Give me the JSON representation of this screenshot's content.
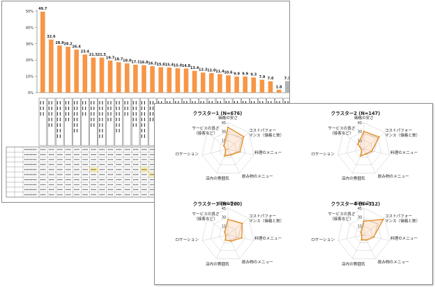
{
  "chart_data": [
    {
      "type": "bar",
      "ylim": [
        0,
        50
      ],
      "yticks": [
        "0%",
        "10%",
        "20%",
        "30%",
        "40%",
        "50%"
      ],
      "grid": false,
      "colors": {
        "bar": "#f79646",
        "last_bar": "#b3b3b3"
      },
      "values": [
        49.7,
        32.6,
        28.9,
        28.2,
        26.4,
        23.4,
        21.5,
        21.5,
        19.7,
        18.7,
        18.0,
        17.1,
        16.8,
        16.2,
        15.6,
        15.4,
        15.0,
        14.8,
        13.4,
        12.3,
        12.0,
        11.4,
        10.6,
        9.9,
        9.9,
        9.3,
        7.9,
        7.0,
        1.8,
        7.1
      ],
      "value_labels": [
        "49.7",
        "32.6",
        "28.9",
        "28.2",
        "26.4",
        "23.4",
        "21.5",
        "21.5",
        "19.7",
        "18.7",
        "18.0",
        "17.1",
        "16.8",
        "16.2",
        "15.6",
        "15.4",
        "15.0",
        "14.8",
        "13.4",
        "12.3",
        "12.0",
        "11.4",
        "10.6",
        "9.9",
        "9.9",
        "9.3",
        "7.9",
        "7.0",
        "1.8",
        "7.1"
      ]
    },
    {
      "type": "radar",
      "title": "クラスター1 (N=676)",
      "axes": [
        "価格の安さ",
        "コストパフォーマンス（価格と質）",
        "料理のメニュー",
        "飲み物のメニュー",
        "店内の雰囲気",
        "ロケーション",
        "サービスの良さ（接客など）"
      ],
      "rlim": [
        0,
        45
      ],
      "rticks": [
        "45",
        "30",
        "15"
      ],
      "series": [
        {
          "values": [
            37,
            34,
            21,
            11,
            13,
            4,
            9
          ]
        }
      ]
    },
    {
      "type": "radar",
      "title": "クラスター2 (N=147)",
      "axes": [
        "価格の安さ",
        "コストパフォーマンス（価格と質）",
        "料理のメニュー",
        "飲み物のメニュー",
        "店内の雰囲気",
        "ロケーション",
        "サービスの良さ（接客など）"
      ],
      "rlim": [
        0,
        45
      ],
      "rticks": [
        "45",
        "30",
        "15"
      ],
      "series": [
        {
          "values": [
            30,
            33,
            14,
            9,
            13,
            4,
            13
          ]
        }
      ]
    },
    {
      "type": "radar",
      "title": "クラスター3 (N=260)",
      "axes": [
        "価格の安さ",
        "コストパフォーマンス（価格と質）",
        "料理のメニュー",
        "飲み物のメニュー",
        "店内の雰囲気",
        "ロケーション",
        "サービスの良さ（接客など）"
      ],
      "rlim": [
        0,
        45
      ],
      "rticks": [
        "45",
        "30",
        "15"
      ],
      "series": [
        {
          "values": [
            26,
            31,
            24,
            12,
            10,
            4,
            7
          ]
        }
      ]
    },
    {
      "type": "radar",
      "title": "クラスター4 (N=312)",
      "axes": [
        "価格の安さ",
        "コストパフォーマンス（価格と質）",
        "料理のメニュー",
        "飲み物のメニュー",
        "店内の雰囲気",
        "ロケーション",
        "サービスの良さ（接客など）"
      ],
      "rlim": [
        0,
        45
      ],
      "rticks": [
        "45",
        "30",
        "15"
      ],
      "series": [
        {
          "values": [
            23,
            42,
            17,
            10,
            9,
            4,
            6
          ]
        }
      ]
    }
  ],
  "radar_colors": {
    "line": "#e3902a",
    "avg": "#9a9a9a",
    "grid": "#c9c9c9",
    "fill": "rgba(247,150,70,0.18)"
  }
}
